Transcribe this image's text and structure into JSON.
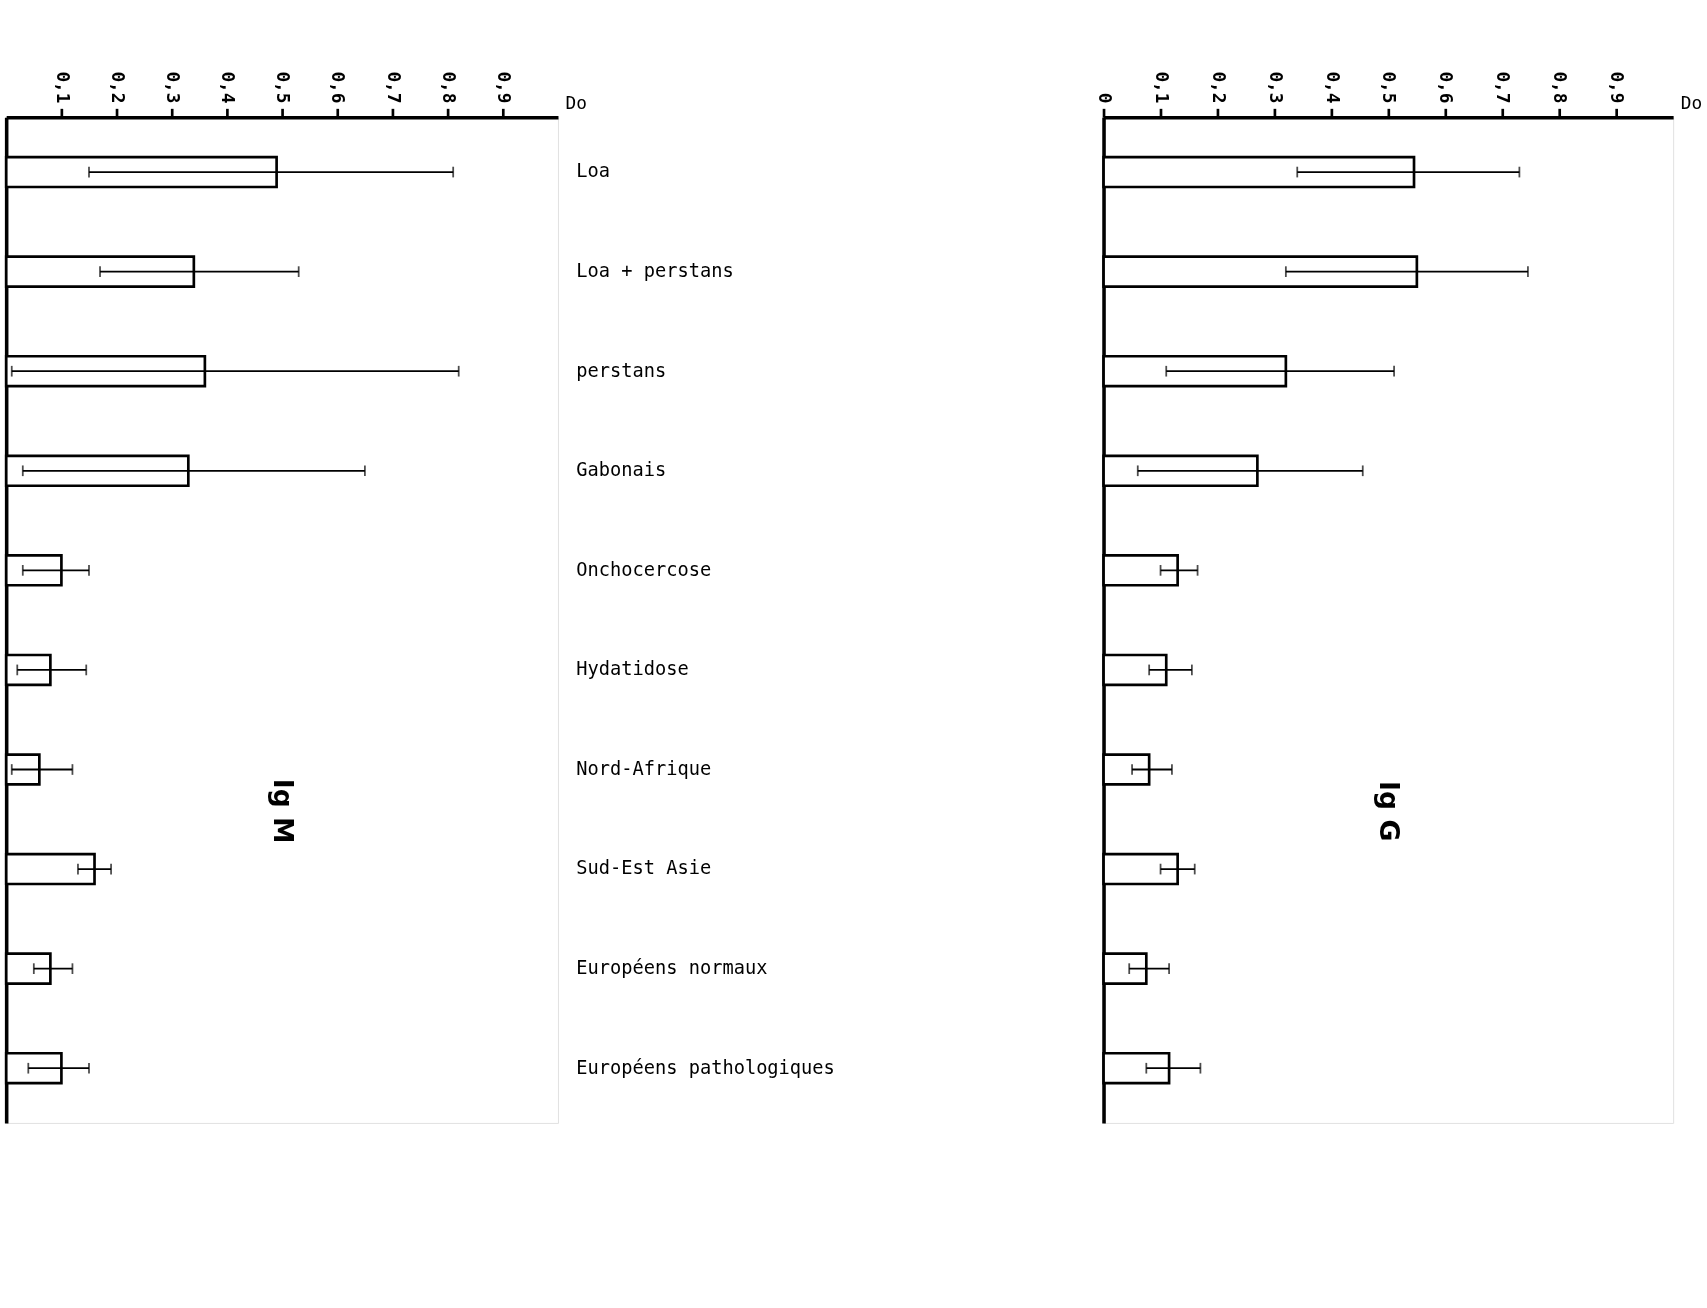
{
  "chart_data": [
    {
      "type": "bar",
      "orientation": "horizontal",
      "title": "Ig M",
      "xlabel": "Do",
      "categories": [
        "Loa",
        "Loa + perstans",
        "perstans",
        "Gabonais",
        "Onchocercose",
        "Hydatidose",
        "Nord-Afrique",
        "Sud-Est Asie",
        "Européens normaux",
        "Européens pathologiques"
      ],
      "values": [
        0.49,
        0.34,
        0.36,
        0.33,
        0.1,
        0.08,
        0.06,
        0.16,
        0.08,
        0.1
      ],
      "errors": [
        [
          0.15,
          0.81
        ],
        [
          0.17,
          0.53
        ],
        [
          0.01,
          0.82
        ],
        [
          0.03,
          0.65
        ],
        [
          0.03,
          0.15
        ],
        [
          0.02,
          0.145
        ],
        [
          0.01,
          0.12
        ],
        [
          0.13,
          0.19
        ],
        [
          0.05,
          0.12
        ],
        [
          0.04,
          0.15
        ]
      ],
      "color": "#ffffff",
      "xlim": [
        0,
        1.0
      ],
      "xticks": [
        {
          "value": 0.1,
          "label": "0,1"
        },
        {
          "value": 0.2,
          "label": "0,2"
        },
        {
          "value": 0.3,
          "label": "0,3"
        },
        {
          "value": 0.4,
          "label": "0,4"
        },
        {
          "value": 0.5,
          "label": "0,5"
        },
        {
          "value": 0.6,
          "label": "0,6"
        },
        {
          "value": 0.7,
          "label": "0,7"
        },
        {
          "value": 0.8,
          "label": "0,8"
        },
        {
          "value": 0.9,
          "label": "0,9"
        }
      ],
      "grid": false
    },
    {
      "type": "bar",
      "orientation": "horizontal",
      "title": "Ig G",
      "xlabel": "Do",
      "categories": [
        null,
        null,
        null,
        null,
        null,
        null,
        null,
        null,
        null,
        null
      ],
      "values": [
        0.545,
        0.55,
        0.32,
        0.27,
        0.13,
        0.11,
        0.08,
        0.13,
        0.075,
        0.115
      ],
      "errors": [
        [
          0.34,
          0.73
        ],
        [
          0.32,
          0.745
        ],
        [
          0.11,
          0.51
        ],
        [
          0.06,
          0.455
        ],
        [
          0.1,
          0.165
        ],
        [
          0.08,
          0.155
        ],
        [
          0.05,
          0.12
        ],
        [
          0.1,
          0.16
        ],
        [
          0.045,
          0.115
        ],
        [
          0.075,
          0.17
        ]
      ],
      "color": "#ffffff",
      "xlim": [
        0,
        1.0
      ],
      "xticks": [
        {
          "value": 0,
          "label": "0"
        },
        {
          "value": 0.1,
          "label": "0,1"
        },
        {
          "value": 0.2,
          "label": "0,2"
        },
        {
          "value": 0.3,
          "label": "0,3"
        },
        {
          "value": 0.4,
          "label": "0,4"
        },
        {
          "value": 0.5,
          "label": "0,5"
        },
        {
          "value": 0.6,
          "label": "0,6"
        },
        {
          "value": 0.7,
          "label": "0,7"
        },
        {
          "value": 0.8,
          "label": "0,8"
        },
        {
          "value": 0.9,
          "label": "0,9"
        }
      ],
      "tick_labels": "x",
      "grid": false
    }
  ]
}
